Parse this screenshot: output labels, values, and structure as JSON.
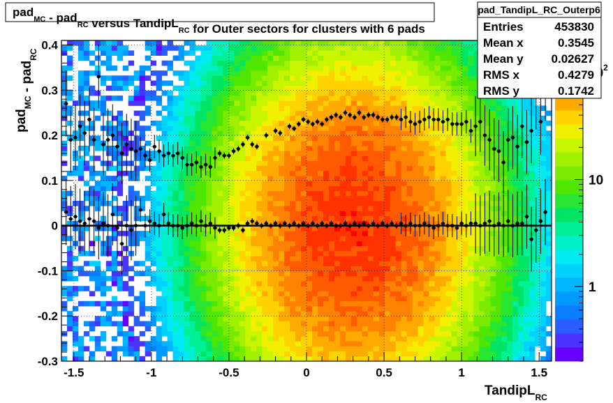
{
  "chart_data": {
    "type": "heatmap",
    "title": {
      "parts": [
        {
          "text": "pad",
          "sub": "MC"
        },
        {
          "text": " - pad",
          "sub": "RC"
        },
        {
          "text": " versus TandipL",
          "sub": "RC"
        },
        {
          "text": " for Outer sectors for clusters with 6 pads",
          "sub": ""
        }
      ]
    },
    "xlabel": {
      "text": "TandipL",
      "sub": "RC"
    },
    "ylabel": {
      "parts": [
        {
          "text": "pad",
          "sub": "MC"
        },
        {
          "text": " - pad",
          "sub": "RC"
        }
      ]
    },
    "xlim": [
      -1.58,
      1.58
    ],
    "ylim": [
      -0.3,
      0.41
    ],
    "x_ticks": [
      {
        "v": -1.5,
        "label": "-1.5"
      },
      {
        "v": -1,
        "label": "-1"
      },
      {
        "v": -0.5,
        "label": "-0.5"
      },
      {
        "v": 0,
        "label": "0"
      },
      {
        "v": 0.5,
        "label": "0.5"
      },
      {
        "v": 1,
        "label": "1"
      },
      {
        "v": 1.5,
        "label": "1.5"
      }
    ],
    "y_ticks": [
      {
        "v": -0.3,
        "label": "-0.3"
      },
      {
        "v": -0.2,
        "label": "-0.2"
      },
      {
        "v": -0.1,
        "label": "-0.1"
      },
      {
        "v": 0,
        "label": "0"
      },
      {
        "v": 0.1,
        "label": "0.1"
      },
      {
        "v": 0.2,
        "label": "0.2"
      },
      {
        "v": 0.3,
        "label": "0.3"
      },
      {
        "v": 0.4,
        "label": "0.4"
      }
    ],
    "grid": true,
    "color_scale": {
      "type": "log",
      "range": [
        0.2,
        200
      ],
      "ticks": [
        {
          "v": 1,
          "label": "1"
        },
        {
          "v": 10,
          "label": "10"
        },
        {
          "v": 100,
          "label": "10",
          "sup": "2"
        }
      ],
      "palette": [
        "#6600ff",
        "#4a32ff",
        "#2a5cff",
        "#0a7dff",
        "#0099ff",
        "#00b5ff",
        "#00d2ff",
        "#00ecf0",
        "#00f0c8",
        "#00f096",
        "#00e664",
        "#28e632",
        "#50e600",
        "#78eb00",
        "#a0f000",
        "#c8f500",
        "#f0f000",
        "#ffd200",
        "#ffaa00",
        "#ff8200",
        "#ff5a00",
        "#ff3200",
        "#ff0000"
      ]
    },
    "heatmap_model": {
      "x_bins": 88,
      "y_bins": 64,
      "peak_count": 130,
      "x_peak": 0.3,
      "x_sigma": 0.43,
      "y_center": 0.0,
      "y_sigma": 0.2
    },
    "profile_means": [
      {
        "x": -1.55,
        "y": 0.27
      },
      {
        "x": -1.52,
        "y": 0.19
      },
      {
        "x": -1.49,
        "y": 0.195
      },
      {
        "x": -1.46,
        "y": 0.22
      },
      {
        "x": -1.43,
        "y": 0.205
      },
      {
        "x": -1.4,
        "y": 0.235
      },
      {
        "x": -1.37,
        "y": 0.19
      },
      {
        "x": -1.34,
        "y": 0.33
      },
      {
        "x": -1.31,
        "y": 0.18
      },
      {
        "x": -1.28,
        "y": 0.19
      },
      {
        "x": -1.25,
        "y": 0.2
      },
      {
        "x": -1.22,
        "y": 0.175
      },
      {
        "x": -1.19,
        "y": 0.16
      },
      {
        "x": -1.16,
        "y": 0.18
      },
      {
        "x": -1.13,
        "y": 0.17
      },
      {
        "x": -1.1,
        "y": 0.165
      },
      {
        "x": -1.07,
        "y": 0.17
      },
      {
        "x": -1.04,
        "y": 0.155
      },
      {
        "x": -1.01,
        "y": 0.145
      },
      {
        "x": -0.98,
        "y": 0.175
      },
      {
        "x": -0.95,
        "y": 0.165
      },
      {
        "x": -0.92,
        "y": 0.155
      },
      {
        "x": -0.89,
        "y": 0.16
      },
      {
        "x": -0.86,
        "y": 0.155
      },
      {
        "x": -0.83,
        "y": 0.16
      },
      {
        "x": -0.8,
        "y": 0.15
      },
      {
        "x": -0.77,
        "y": 0.135
      },
      {
        "x": -0.74,
        "y": 0.135
      },
      {
        "x": -0.71,
        "y": 0.14
      },
      {
        "x": -0.68,
        "y": 0.13
      },
      {
        "x": -0.65,
        "y": 0.135
      },
      {
        "x": -0.62,
        "y": 0.13
      },
      {
        "x": -0.59,
        "y": 0.15
      },
      {
        "x": -0.56,
        "y": 0.16
      },
      {
        "x": -0.53,
        "y": 0.155
      },
      {
        "x": -0.5,
        "y": 0.155
      },
      {
        "x": -0.47,
        "y": 0.165
      },
      {
        "x": -0.44,
        "y": 0.17
      },
      {
        "x": -0.41,
        "y": 0.18
      },
      {
        "x": -0.38,
        "y": 0.195
      },
      {
        "x": -0.35,
        "y": 0.18
      },
      {
        "x": -0.32,
        "y": 0.175
      },
      {
        "x": -0.26,
        "y": 0.2
      },
      {
        "x": -0.2,
        "y": 0.21
      },
      {
        "x": -0.17,
        "y": 0.205
      },
      {
        "x": -0.11,
        "y": 0.22
      },
      {
        "x": -0.08,
        "y": 0.215
      },
      {
        "x": -0.05,
        "y": 0.225
      },
      {
        "x": -0.02,
        "y": 0.235
      },
      {
        "x": 0.01,
        "y": 0.23
      },
      {
        "x": 0.04,
        "y": 0.225
      },
      {
        "x": 0.07,
        "y": 0.23
      },
      {
        "x": 0.1,
        "y": 0.225
      },
      {
        "x": 0.13,
        "y": 0.235
      },
      {
        "x": 0.16,
        "y": 0.24
      },
      {
        "x": 0.19,
        "y": 0.245
      },
      {
        "x": 0.22,
        "y": 0.24
      },
      {
        "x": 0.25,
        "y": 0.25
      },
      {
        "x": 0.28,
        "y": 0.245
      },
      {
        "x": 0.31,
        "y": 0.24
      },
      {
        "x": 0.34,
        "y": 0.25
      },
      {
        "x": 0.37,
        "y": 0.24
      },
      {
        "x": 0.4,
        "y": 0.245
      },
      {
        "x": 0.43,
        "y": 0.245
      },
      {
        "x": 0.46,
        "y": 0.24
      },
      {
        "x": 0.49,
        "y": 0.235
      },
      {
        "x": 0.52,
        "y": 0.235
      },
      {
        "x": 0.55,
        "y": 0.24
      },
      {
        "x": 0.58,
        "y": 0.24
      },
      {
        "x": 0.61,
        "y": 0.235
      },
      {
        "x": 0.64,
        "y": 0.24
      },
      {
        "x": 0.67,
        "y": 0.23
      },
      {
        "x": 0.7,
        "y": 0.225
      },
      {
        "x": 0.73,
        "y": 0.23
      },
      {
        "x": 0.76,
        "y": 0.235
      },
      {
        "x": 0.79,
        "y": 0.24
      },
      {
        "x": 0.82,
        "y": 0.235
      },
      {
        "x": 0.85,
        "y": 0.235
      },
      {
        "x": 0.88,
        "y": 0.23
      },
      {
        "x": 0.91,
        "y": 0.235
      },
      {
        "x": 0.94,
        "y": 0.225
      },
      {
        "x": 0.97,
        "y": 0.225
      },
      {
        "x": 1.0,
        "y": 0.225
      },
      {
        "x": 1.03,
        "y": 0.23
      },
      {
        "x": 1.06,
        "y": 0.21
      },
      {
        "x": 1.09,
        "y": 0.22
      },
      {
        "x": 1.12,
        "y": 0.23
      },
      {
        "x": 1.15,
        "y": 0.2
      },
      {
        "x": 1.18,
        "y": 0.19
      },
      {
        "x": 1.21,
        "y": 0.17
      },
      {
        "x": 1.24,
        "y": 0.165
      },
      {
        "x": 1.27,
        "y": 0.14
      },
      {
        "x": 1.3,
        "y": 0.19
      },
      {
        "x": 1.33,
        "y": 0.195
      },
      {
        "x": 1.36,
        "y": 0.175
      },
      {
        "x": 1.39,
        "y": 0.22
      },
      {
        "x": 1.42,
        "y": 0.185
      },
      {
        "x": 1.45,
        "y": 0.21
      },
      {
        "x": 1.48,
        "y": 0.285
      },
      {
        "x": 1.51,
        "y": 0.23
      },
      {
        "x": 1.54,
        "y": 0.305
      }
    ],
    "profile_zero": [
      {
        "x": -1.55,
        "y": 0.03
      },
      {
        "x": -1.52,
        "y": 0.015
      },
      {
        "x": -1.49,
        "y": 0.02
      },
      {
        "x": -1.46,
        "y": 0.01
      },
      {
        "x": -1.43,
        "y": 0.005
      },
      {
        "x": -1.4,
        "y": 0.015
      },
      {
        "x": -1.37,
        "y": 0.01
      },
      {
        "x": -1.34,
        "y": -0.005
      },
      {
        "x": -1.31,
        "y": 0.005
      },
      {
        "x": -1.28,
        "y": 0.0
      },
      {
        "x": -1.25,
        "y": 0.025
      },
      {
        "x": -1.22,
        "y": -0.005
      },
      {
        "x": -1.19,
        "y": -0.04
      },
      {
        "x": -1.16,
        "y": 0.0
      },
      {
        "x": -1.13,
        "y": -0.01
      },
      {
        "x": -1.1,
        "y": 0.0
      },
      {
        "x": -1.07,
        "y": 0.035
      },
      {
        "x": -1.04,
        "y": 0.0
      },
      {
        "x": -1.01,
        "y": 0.01
      },
      {
        "x": -0.98,
        "y": 0.005
      },
      {
        "x": -0.95,
        "y": 0.0
      },
      {
        "x": -0.92,
        "y": 0.025
      },
      {
        "x": -0.89,
        "y": 0.005
      },
      {
        "x": -0.86,
        "y": 0.0
      },
      {
        "x": -0.83,
        "y": 0.0
      },
      {
        "x": -0.8,
        "y": -0.005
      },
      {
        "x": -0.77,
        "y": 0.0
      },
      {
        "x": -0.74,
        "y": 0.005
      },
      {
        "x": -0.71,
        "y": 0.0
      },
      {
        "x": -0.68,
        "y": 0.01
      },
      {
        "x": -0.65,
        "y": 0.0
      },
      {
        "x": -0.62,
        "y": 0.005
      },
      {
        "x": -0.59,
        "y": -0.005
      },
      {
        "x": -0.56,
        "y": -0.01
      },
      {
        "x": -0.53,
        "y": -0.01
      },
      {
        "x": -0.5,
        "y": -0.005
      },
      {
        "x": -0.47,
        "y": -0.005
      },
      {
        "x": -0.44,
        "y": 0.0
      },
      {
        "x": -0.41,
        "y": -0.01
      },
      {
        "x": -0.38,
        "y": 0.005
      },
      {
        "x": -0.35,
        "y": 0.01
      },
      {
        "x": -0.32,
        "y": 0.005
      },
      {
        "x": -0.29,
        "y": 0.0
      },
      {
        "x": -0.26,
        "y": 0.005
      },
      {
        "x": -0.23,
        "y": 0.0
      },
      {
        "x": -0.2,
        "y": 0.005
      },
      {
        "x": -0.17,
        "y": 0.0
      },
      {
        "x": -0.14,
        "y": 0.005
      },
      {
        "x": -0.11,
        "y": 0.0
      },
      {
        "x": -0.08,
        "y": 0.005
      },
      {
        "x": -0.05,
        "y": 0.0
      },
      {
        "x": -0.02,
        "y": 0.005
      },
      {
        "x": 0.01,
        "y": 0.0
      },
      {
        "x": 0.04,
        "y": 0.005
      },
      {
        "x": 0.07,
        "y": 0.0
      },
      {
        "x": 0.1,
        "y": 0.005
      },
      {
        "x": 0.13,
        "y": 0.0
      },
      {
        "x": 0.16,
        "y": 0.005
      },
      {
        "x": 0.19,
        "y": 0.0
      },
      {
        "x": 0.22,
        "y": 0.0
      },
      {
        "x": 0.25,
        "y": 0.005
      },
      {
        "x": 0.28,
        "y": 0.0
      },
      {
        "x": 0.31,
        "y": 0.005
      },
      {
        "x": 0.34,
        "y": 0.0
      },
      {
        "x": 0.37,
        "y": 0.005
      },
      {
        "x": 0.4,
        "y": 0.0
      },
      {
        "x": 0.43,
        "y": 0.005
      },
      {
        "x": 0.46,
        "y": 0.0
      },
      {
        "x": 0.49,
        "y": 0.005
      },
      {
        "x": 0.52,
        "y": 0.0
      },
      {
        "x": 0.55,
        "y": 0.005
      },
      {
        "x": 0.58,
        "y": 0.0
      },
      {
        "x": 0.61,
        "y": 0.005
      },
      {
        "x": 0.64,
        "y": 0.0
      },
      {
        "x": 0.67,
        "y": 0.005
      },
      {
        "x": 0.7,
        "y": 0.0
      },
      {
        "x": 0.73,
        "y": 0.0
      },
      {
        "x": 0.76,
        "y": 0.005
      },
      {
        "x": 0.79,
        "y": 0.0
      },
      {
        "x": 0.82,
        "y": -0.005
      },
      {
        "x": 0.85,
        "y": 0.0
      },
      {
        "x": 0.88,
        "y": 0.005
      },
      {
        "x": 0.91,
        "y": 0.0
      },
      {
        "x": 0.94,
        "y": 0.0
      },
      {
        "x": 0.97,
        "y": -0.005
      },
      {
        "x": 1.0,
        "y": 0.005
      },
      {
        "x": 1.03,
        "y": 0.0
      },
      {
        "x": 1.06,
        "y": 0.005
      },
      {
        "x": 1.09,
        "y": 0.005
      },
      {
        "x": 1.12,
        "y": 0.0
      },
      {
        "x": 1.15,
        "y": 0.005
      },
      {
        "x": 1.18,
        "y": 0.01
      },
      {
        "x": 1.21,
        "y": 0.0
      },
      {
        "x": 1.24,
        "y": 0.005
      },
      {
        "x": 1.27,
        "y": 0.0
      },
      {
        "x": 1.3,
        "y": 0.01
      },
      {
        "x": 1.33,
        "y": 0.0
      },
      {
        "x": 1.36,
        "y": 0.005
      },
      {
        "x": 1.39,
        "y": 0.005
      },
      {
        "x": 1.42,
        "y": 0.02
      },
      {
        "x": 1.45,
        "y": -0.03
      },
      {
        "x": 1.48,
        "y": -0.01
      },
      {
        "x": 1.51,
        "y": 0.01
      },
      {
        "x": 1.54,
        "y": 0.03
      }
    ],
    "fit_line": {
      "y": 0.0,
      "x_from": -1.58,
      "x_to": 1.58
    }
  },
  "stats_box": {
    "name": "pad_TandipL_RC_Outerp6",
    "rows": [
      {
        "label": "Entries",
        "value": "453830"
      },
      {
        "label": "Mean x",
        "value": "0.3545"
      },
      {
        "label": "Mean y",
        "value": "0.02627"
      },
      {
        "label": "RMS x",
        "value": "0.4279"
      },
      {
        "label": "RMS y",
        "value": "0.1742"
      }
    ]
  }
}
